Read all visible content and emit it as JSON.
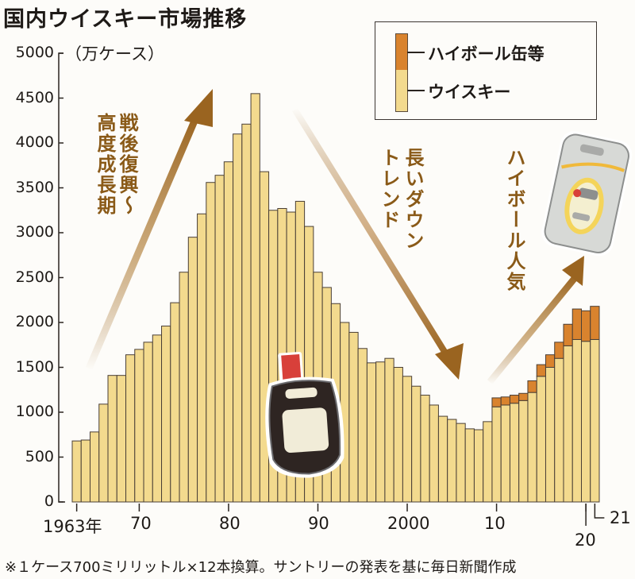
{
  "title": "国内ウイスキー市場推移",
  "unit_label": "（万ケース）",
  "legend": {
    "items": [
      {
        "label": "ハイボール缶等",
        "color": "#d9832e"
      },
      {
        "label": "ウイスキー",
        "color": "#f3da8e"
      }
    ]
  },
  "annotations": {
    "growth": [
      "戦後復興～",
      "高度成長期"
    ],
    "decline": [
      "長いダウン",
      "トレンド"
    ],
    "highball": "ハイボール人気"
  },
  "x_labels": {
    "l1963": "1963年",
    "l1970": "70",
    "l1980": "80",
    "l1990": "90",
    "l2000": "2000",
    "l2010": "10",
    "l2020": "20",
    "l2021": "21"
  },
  "footnote": "※１ケース700ミリリットル×12本換算。サントリーの発表を基に毎日新聞作成",
  "colors": {
    "whisky": "#f3da8e",
    "highball": "#d9832e",
    "bar_stroke": "#4a3f36",
    "arrow": "#9a6420"
  },
  "chart_data": {
    "type": "bar",
    "stacked": true,
    "title": "国内ウイスキー市場推移",
    "xlabel": "",
    "ylabel": "（万ケース）",
    "ylim": [
      0,
      5000
    ],
    "yticks": [
      0,
      500,
      1000,
      1500,
      2000,
      2500,
      3000,
      3500,
      4000,
      4500,
      5000
    ],
    "grid": false,
    "legend_position": "top-right",
    "categories": [
      1963,
      1964,
      1965,
      1966,
      1967,
      1968,
      1969,
      1970,
      1971,
      1972,
      1973,
      1974,
      1975,
      1976,
      1977,
      1978,
      1979,
      1980,
      1981,
      1982,
      1983,
      1984,
      1985,
      1986,
      1987,
      1988,
      1989,
      1990,
      1991,
      1992,
      1993,
      1994,
      1995,
      1996,
      1997,
      1998,
      1999,
      2000,
      2001,
      2002,
      2003,
      2004,
      2005,
      2006,
      2007,
      2008,
      2009,
      2010,
      2011,
      2012,
      2013,
      2014,
      2015,
      2016,
      2017,
      2018,
      2019,
      2020,
      2021
    ],
    "series": [
      {
        "name": "ウイスキー",
        "values": [
          680,
          690,
          780,
          1090,
          1410,
          1410,
          1640,
          1700,
          1780,
          1860,
          1960,
          2220,
          2560,
          2950,
          3210,
          3560,
          3640,
          3790,
          4100,
          4210,
          4550,
          3680,
          3250,
          3270,
          3230,
          3350,
          3070,
          2560,
          2390,
          2210,
          2000,
          1890,
          1710,
          1550,
          1560,
          1600,
          1500,
          1400,
          1290,
          1190,
          1080,
          955,
          920,
          875,
          815,
          805,
          895,
          1060,
          1080,
          1100,
          1130,
          1220,
          1400,
          1500,
          1600,
          1740,
          1810,
          1790,
          1810
        ]
      },
      {
        "name": "ハイボール缶等",
        "values": [
          0,
          0,
          0,
          0,
          0,
          0,
          0,
          0,
          0,
          0,
          0,
          0,
          0,
          0,
          0,
          0,
          0,
          0,
          0,
          0,
          0,
          0,
          0,
          0,
          0,
          0,
          0,
          0,
          0,
          0,
          0,
          0,
          0,
          0,
          0,
          0,
          0,
          0,
          0,
          0,
          0,
          0,
          0,
          0,
          0,
          0,
          0,
          100,
          90,
          90,
          80,
          130,
          130,
          140,
          180,
          240,
          340,
          340,
          370
        ]
      }
    ],
    "annotations": [
      "戦後復興～高度成長期",
      "長いダウントレンド",
      "ハイボール人気"
    ],
    "note": "※１ケース700ミリリットル×12本換算。サントリーの発表を基に毎日新聞作成"
  }
}
